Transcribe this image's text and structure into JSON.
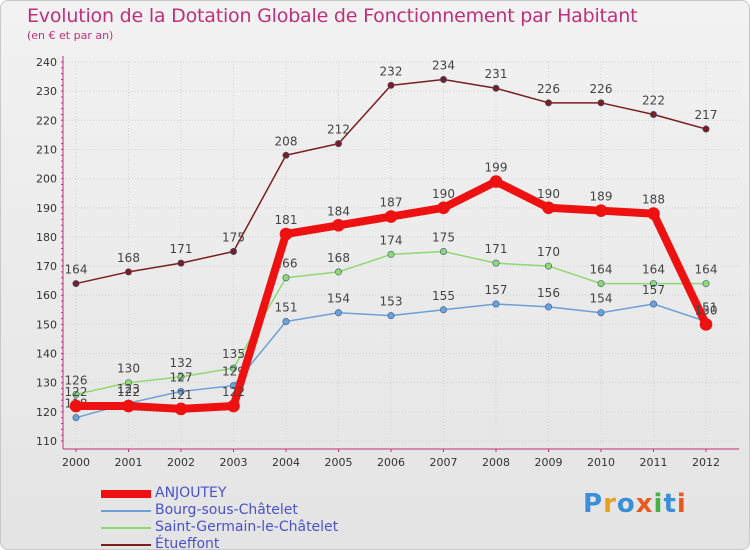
{
  "title": "Evolution de la Dotation Globale de Fonctionnement par Habitant",
  "subtitle": "(en € et par an)",
  "logo": {
    "text": "Proxiti",
    "colors": [
      "#3a8fd8",
      "#e8a020",
      "#3a8fd8",
      "#e85a20",
      "#48b048",
      "#3a8fd8",
      "#e85a20"
    ]
  },
  "colors": {
    "title": "#c0307a",
    "axis": "#c0307a",
    "tick_label": "#333333",
    "legend_text": "#4a52c8"
  },
  "chart_data": {
    "type": "line",
    "title": "Evolution de la Dotation Globale de Fonctionnement par Habitant",
    "ylabel": "(en € et par an)",
    "xlabel": "",
    "ylim": [
      110,
      240
    ],
    "yticks": [
      110,
      120,
      130,
      140,
      150,
      160,
      170,
      180,
      190,
      200,
      210,
      220,
      230,
      240
    ],
    "categories": [
      "2000",
      "2001",
      "2002",
      "2003",
      "2004",
      "2005",
      "2006",
      "2007",
      "2008",
      "2009",
      "2010",
      "2011",
      "2012"
    ],
    "grid": true,
    "legend_position": "bottom-left",
    "series": [
      {
        "name": "Étueffont",
        "color": "#7a1e1e",
        "width": 1.5,
        "values": [
          164,
          168,
          171,
          175,
          208,
          212,
          232,
          234,
          231,
          226,
          226,
          222,
          217
        ],
        "labels": [
          "164",
          "168",
          "171",
          "175",
          "208",
          "212",
          "232",
          "234",
          "231",
          "226",
          "226",
          "222",
          "217"
        ]
      },
      {
        "name": "Saint-Germain-le-Châtelet",
        "color": "#90d870",
        "width": 1.5,
        "values": [
          126,
          130,
          132,
          135,
          166,
          168,
          174,
          175,
          171,
          170,
          164,
          164,
          164
        ],
        "labels": [
          "126",
          "130",
          "132",
          "135",
          "166",
          "168",
          "174",
          "175",
          "171",
          "170",
          "164",
          "164",
          "164"
        ]
      },
      {
        "name": "Bourg-sous-Châtelet",
        "color": "#6ca0d8",
        "width": 1.5,
        "values": [
          118,
          123,
          127,
          129,
          151,
          154,
          153,
          155,
          157,
          156,
          154,
          157,
          151
        ],
        "labels": [
          "118",
          "123",
          "127",
          "129",
          "151",
          "154",
          "153",
          "155",
          "157",
          "156",
          "154",
          "157",
          "151"
        ]
      },
      {
        "name": "ANJOUTEY",
        "color": "#ee1111",
        "width": 8,
        "values": [
          122,
          122,
          121,
          122,
          181,
          184,
          187,
          190,
          199,
          190,
          189,
          188,
          150
        ],
        "labels": [
          "122",
          "122",
          "121",
          "122",
          "181",
          "184",
          "187",
          "190",
          "199",
          "190",
          "189",
          "188",
          "150"
        ]
      }
    ],
    "legend": [
      "ANJOUTEY",
      "Bourg-sous-Châtelet",
      "Saint-Germain-le-Châtelet",
      "Étueffont"
    ]
  }
}
